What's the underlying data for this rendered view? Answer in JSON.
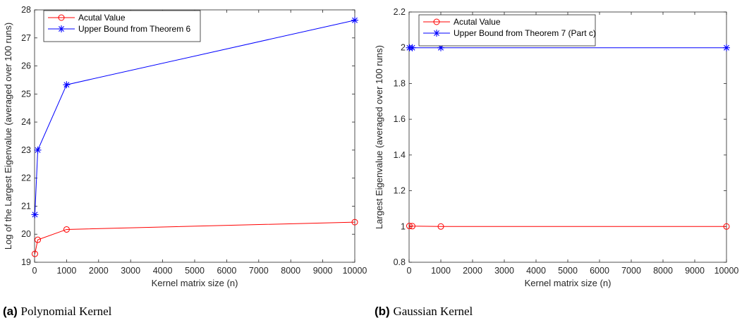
{
  "chart_data": [
    {
      "type": "line",
      "caption_label": "(a)",
      "caption_text": "Polynomial Kernel",
      "xlabel": "Kernel matrix size (n)",
      "ylabel": "Log of the Largest Eigenvalue (averaged over 100 runs)",
      "xlim": [
        0,
        10000
      ],
      "ylim": [
        19,
        28
      ],
      "xticks": [
        0,
        1000,
        2000,
        3000,
        4000,
        5000,
        6000,
        7000,
        8000,
        9000,
        10000
      ],
      "yticks": [
        19,
        20,
        21,
        22,
        23,
        24,
        25,
        26,
        27,
        28
      ],
      "legend_position": "top-left",
      "series": [
        {
          "name": "Acutal Value",
          "color": "#ff0000",
          "marker": "circle",
          "x": [
            10,
            100,
            1000,
            10000
          ],
          "y": [
            19.3,
            19.8,
            20.17,
            20.43
          ]
        },
        {
          "name": "Upper Bound from Theorem 6",
          "color": "#0000ff",
          "marker": "asterisk",
          "x": [
            10,
            100,
            1000,
            10000
          ],
          "y": [
            20.7,
            23.0,
            25.33,
            27.63
          ]
        }
      ]
    },
    {
      "type": "line",
      "caption_label": "(b)",
      "caption_text": "Gaussian Kernel",
      "xlabel": "Kernel matrix size (n)",
      "ylabel": "Largest Eigenvalue (averaged over 100 runs)",
      "xlim": [
        0,
        10000
      ],
      "ylim": [
        0.8,
        2.2
      ],
      "xticks": [
        0,
        1000,
        2000,
        3000,
        4000,
        5000,
        6000,
        7000,
        8000,
        9000,
        10000
      ],
      "yticks": [
        0.8,
        1,
        1.2,
        1.4,
        1.6,
        1.8,
        2,
        2.2
      ],
      "legend_position": "top-left",
      "series": [
        {
          "name": "Acutal Value",
          "color": "#ff0000",
          "marker": "circle",
          "x": [
            10,
            100,
            1000,
            10000
          ],
          "y": [
            1.003,
            1.002,
            1.0,
            1.0
          ]
        },
        {
          "name": "Upper Bound from Theorem 7 (Part c)",
          "color": "#0000ff",
          "marker": "asterisk",
          "x": [
            10,
            100,
            1000,
            10000
          ],
          "y": [
            2.0,
            2.0,
            2.0,
            2.0
          ]
        }
      ]
    }
  ]
}
